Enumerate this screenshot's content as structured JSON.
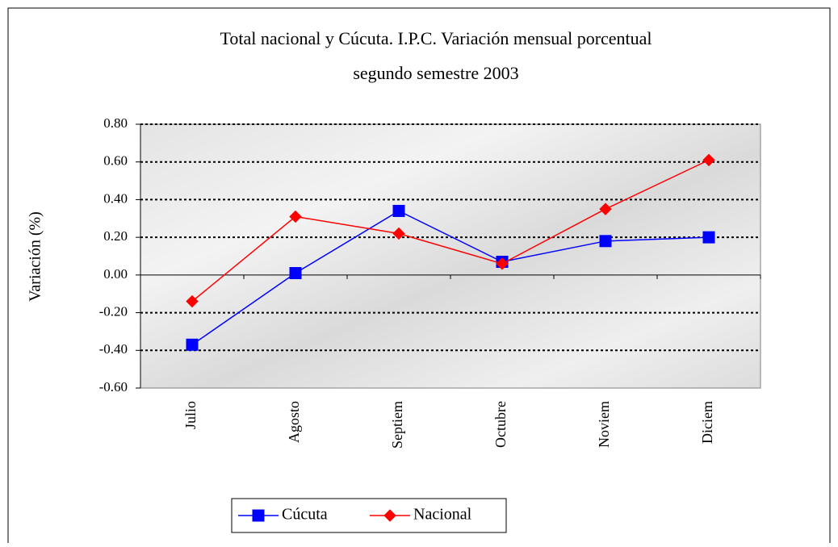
{
  "chart_data": {
    "type": "line",
    "title": [
      "Total nacional y Cúcuta.  I.P.C. Variación mensual porcentual",
      "segundo semestre 2003"
    ],
    "y_label": "Variación (%)",
    "categories": [
      "Julio",
      "Agosto",
      "Septiem",
      "Octubre",
      "Noviem",
      "Diciem"
    ],
    "series": [
      {
        "name": "Cúcuta",
        "color": "#0000ff",
        "marker": "square",
        "values": [
          -0.37,
          0.01,
          0.34,
          0.07,
          0.18,
          0.2
        ]
      },
      {
        "name": "Nacional",
        "color": "#ff0000",
        "marker": "diamond",
        "values": [
          -0.14,
          0.31,
          0.22,
          0.06,
          0.35,
          0.61
        ]
      }
    ],
    "ylim": [
      -0.6,
      0.8
    ],
    "yticks": [
      {
        "value": -0.6,
        "label": "-0.60"
      },
      {
        "value": -0.4,
        "label": "-0.40"
      },
      {
        "value": -0.2,
        "label": "-0.20"
      },
      {
        "value": 0,
        "label": "0.00"
      },
      {
        "value": 0.2,
        "label": "0.20"
      },
      {
        "value": 0.4,
        "label": "0.40"
      },
      {
        "value": 0.6,
        "label": "0.60"
      },
      {
        "value": 0.8,
        "label": "0.80"
      }
    ],
    "grid": true,
    "legend": "bottom"
  }
}
